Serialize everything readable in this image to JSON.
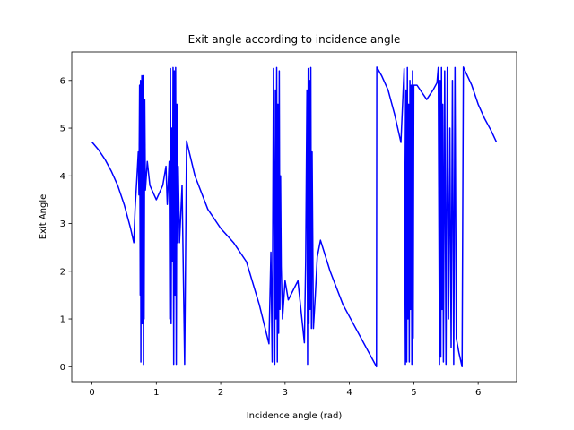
{
  "chart_data": {
    "type": "line",
    "title": "Exit angle according to incidence angle",
    "xlabel": "Incidence angle (rad)",
    "ylabel": "Exit Angle",
    "color": "#0000ff",
    "x": [
      0,
      0.1,
      0.2,
      0.3,
      0.4,
      0.5,
      0.6,
      0.65,
      0.67,
      0.7,
      0.72,
      0.73,
      0.74,
      0.75,
      0.755,
      0.76,
      0.765,
      0.77,
      0.775,
      0.78,
      0.785,
      0.79,
      0.795,
      0.8,
      0.805,
      0.81,
      0.82,
      0.83,
      0.86,
      0.9,
      1.0,
      1.1,
      1.15,
      1.17,
      1.2,
      1.21,
      1.22,
      1.23,
      1.24,
      1.25,
      1.26,
      1.27,
      1.28,
      1.29,
      1.3,
      1.31,
      1.32,
      1.33,
      1.34,
      1.36,
      1.4,
      1.44,
      1.47,
      1.6,
      1.8,
      2.0,
      2.2,
      2.4,
      2.6,
      2.75,
      2.78,
      2.8,
      2.82,
      2.84,
      2.85,
      2.86,
      2.87,
      2.88,
      2.89,
      2.9,
      2.91,
      2.92,
      2.93,
      2.94,
      2.96,
      3.0,
      3.05,
      3.2,
      3.3,
      3.32,
      3.34,
      3.35,
      3.36,
      3.37,
      3.38,
      3.39,
      3.4,
      3.41,
      3.42,
      3.44,
      3.47,
      3.5,
      3.55,
      3.7,
      3.9,
      4.1,
      4.3,
      4.42,
      4.425,
      4.5,
      4.6,
      4.7,
      4.8,
      4.85,
      4.87,
      4.88,
      4.89,
      4.9,
      4.91,
      4.92,
      4.93,
      4.94,
      4.95,
      4.96,
      4.97,
      4.98,
      4.99,
      5.0,
      5.05,
      5.2,
      5.3,
      5.36,
      5.38,
      5.4,
      5.41,
      5.42,
      5.43,
      5.44,
      5.45,
      5.46,
      5.48,
      5.5,
      5.52,
      5.54,
      5.56,
      5.58,
      5.6,
      5.62,
      5.64,
      5.66,
      5.7,
      5.75,
      5.77,
      5.9,
      6.0,
      6.1,
      6.2,
      6.283
    ],
    "values": [
      4.71,
      4.55,
      4.35,
      4.1,
      3.8,
      3.4,
      2.9,
      2.6,
      3.3,
      4.0,
      4.5,
      3.6,
      5.9,
      1.5,
      6.0,
      0.1,
      5.8,
      2.0,
      6.1,
      0.9,
      5.5,
      1.2,
      6.1,
      0.05,
      4.3,
      1.0,
      5.6,
      3.7,
      4.3,
      3.8,
      3.5,
      3.8,
      4.2,
      3.4,
      4.3,
      1.0,
      6.25,
      0.9,
      5.0,
      2.2,
      6.27,
      0.05,
      6.2,
      1.5,
      6.27,
      0.05,
      5.5,
      2.6,
      4.2,
      2.6,
      3.8,
      0.05,
      4.73,
      4.0,
      3.3,
      2.9,
      2.6,
      2.2,
      1.3,
      0.48,
      2.4,
      0.1,
      6.25,
      0.05,
      5.8,
      1.0,
      6.27,
      0.1,
      5.5,
      0.7,
      6.2,
      1.2,
      4.0,
      2.1,
      1.0,
      1.8,
      1.4,
      1.8,
      0.5,
      2.2,
      5.8,
      0.05,
      6.25,
      0.9,
      6.0,
      1.2,
      6.27,
      0.8,
      4.5,
      0.8,
      1.5,
      2.3,
      2.65,
      2.0,
      1.3,
      0.8,
      0.3,
      0.0,
      6.28,
      6.1,
      5.8,
      5.3,
      4.7,
      6.25,
      0.05,
      5.8,
      0.1,
      6.27,
      1.0,
      5.5,
      0.1,
      6.0,
      1.2,
      5.9,
      0.05,
      6.2,
      0.6,
      5.9,
      5.9,
      5.6,
      5.8,
      5.95,
      6.27,
      0.05,
      6.0,
      0.2,
      6.27,
      1.2,
      5.5,
      0.1,
      6.2,
      0.05,
      6.27,
      1.0,
      5.0,
      0.4,
      6.0,
      0.05,
      6.27,
      0.6,
      0.3,
      0.0,
      6.28,
      5.9,
      5.5,
      5.2,
      4.95,
      4.71
    ],
    "xlim": [
      -0.314,
      6.597
    ],
    "ylim": [
      -0.314,
      6.597
    ],
    "xticks": [
      0,
      1,
      2,
      3,
      4,
      5,
      6
    ],
    "yticks": [
      0,
      1,
      2,
      3,
      4,
      5,
      6
    ]
  }
}
